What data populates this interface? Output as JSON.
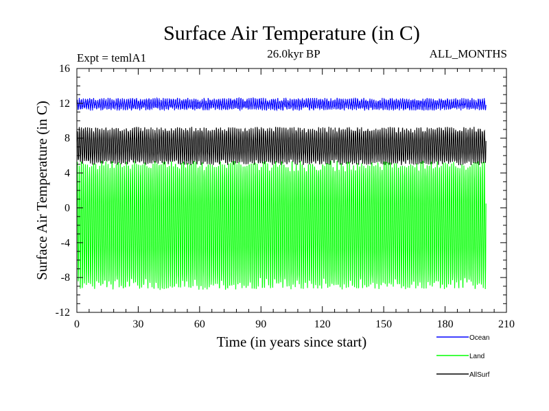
{
  "chart_data": {
    "type": "line",
    "title": "Surface Air Temperature (in C)",
    "subtitle_left": "Expt = temlA1",
    "subtitle_center": "26.0kyr BP",
    "subtitle_right": "ALL_MONTHS",
    "xlabel": "Time (in years since start)",
    "ylabel": "Surface Air Temperature (in C)",
    "xlim": [
      0,
      210
    ],
    "ylim": [
      -12,
      16
    ],
    "xticks": [
      0,
      30,
      60,
      90,
      120,
      150,
      180,
      210
    ],
    "yticks": [
      -12,
      -8,
      -4,
      0,
      4,
      8,
      12,
      16
    ],
    "x_range_years": [
      0,
      200
    ],
    "samples_per_year": 12,
    "series": [
      {
        "name": "Ocean",
        "color": "#0000ff",
        "mean": 11.9,
        "amplitude": 0.5,
        "noise": 0.25
      },
      {
        "name": "Land",
        "color": "#00ff00",
        "mean": -2.0,
        "amplitude": 6.9,
        "noise": 0.7
      },
      {
        "name": "AllSurf",
        "color": "#000000",
        "mean": 7.1,
        "amplitude": 1.9,
        "noise": 0.35
      }
    ]
  }
}
